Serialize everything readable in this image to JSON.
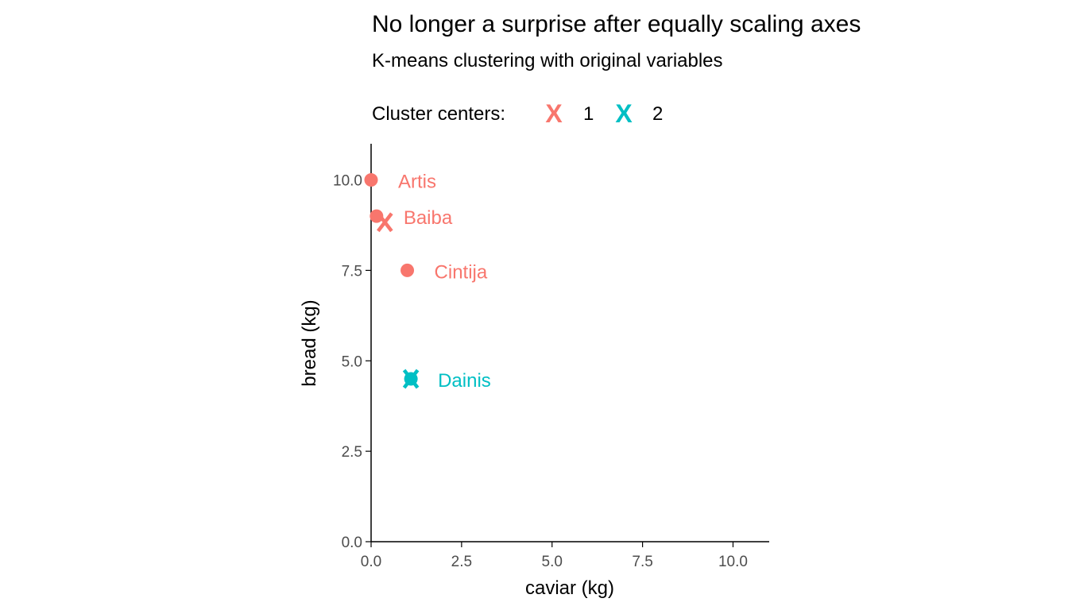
{
  "chart_data": {
    "type": "scatter",
    "title": "No longer a surprise after equally scaling axes",
    "subtitle": "K-means clustering with original variables",
    "xlabel": "caviar (kg)",
    "ylabel": "bread (kg)",
    "xlim": [
      0,
      11
    ],
    "ylim": [
      0,
      11
    ],
    "x_ticks": [
      0,
      2.5,
      5,
      7.5,
      10
    ],
    "x_tick_labels": [
      "0.0",
      "2.5",
      "5.0",
      "7.5",
      "10.0"
    ],
    "y_ticks": [
      0,
      2.5,
      5,
      7.5,
      10
    ],
    "y_tick_labels": [
      "0.0",
      "2.5",
      "5.0",
      "7.5",
      "10.0"
    ],
    "grid": false,
    "legend": {
      "title": "Cluster centers:",
      "placement": "top",
      "entries": [
        {
          "label": "1",
          "color": "#F8766D",
          "marker": "X"
        },
        {
          "label": "2",
          "color": "#00BFC4",
          "marker": "X"
        }
      ]
    },
    "points": [
      {
        "label": "Artis",
        "x": 0.0,
        "y": 10.0,
        "cluster": "1"
      },
      {
        "label": "Baiba",
        "x": 0.15,
        "y": 9.0,
        "cluster": "1"
      },
      {
        "label": "Cintija",
        "x": 1.0,
        "y": 7.5,
        "cluster": "1"
      },
      {
        "label": "Dainis",
        "x": 1.1,
        "y": 4.5,
        "cluster": "2"
      }
    ],
    "centers": [
      {
        "cluster": "1",
        "x": 0.38,
        "y": 8.83
      },
      {
        "cluster": "2",
        "x": 1.1,
        "y": 4.5
      }
    ],
    "cluster_colors": {
      "1": "#F8766D",
      "2": "#00BFC4"
    }
  }
}
